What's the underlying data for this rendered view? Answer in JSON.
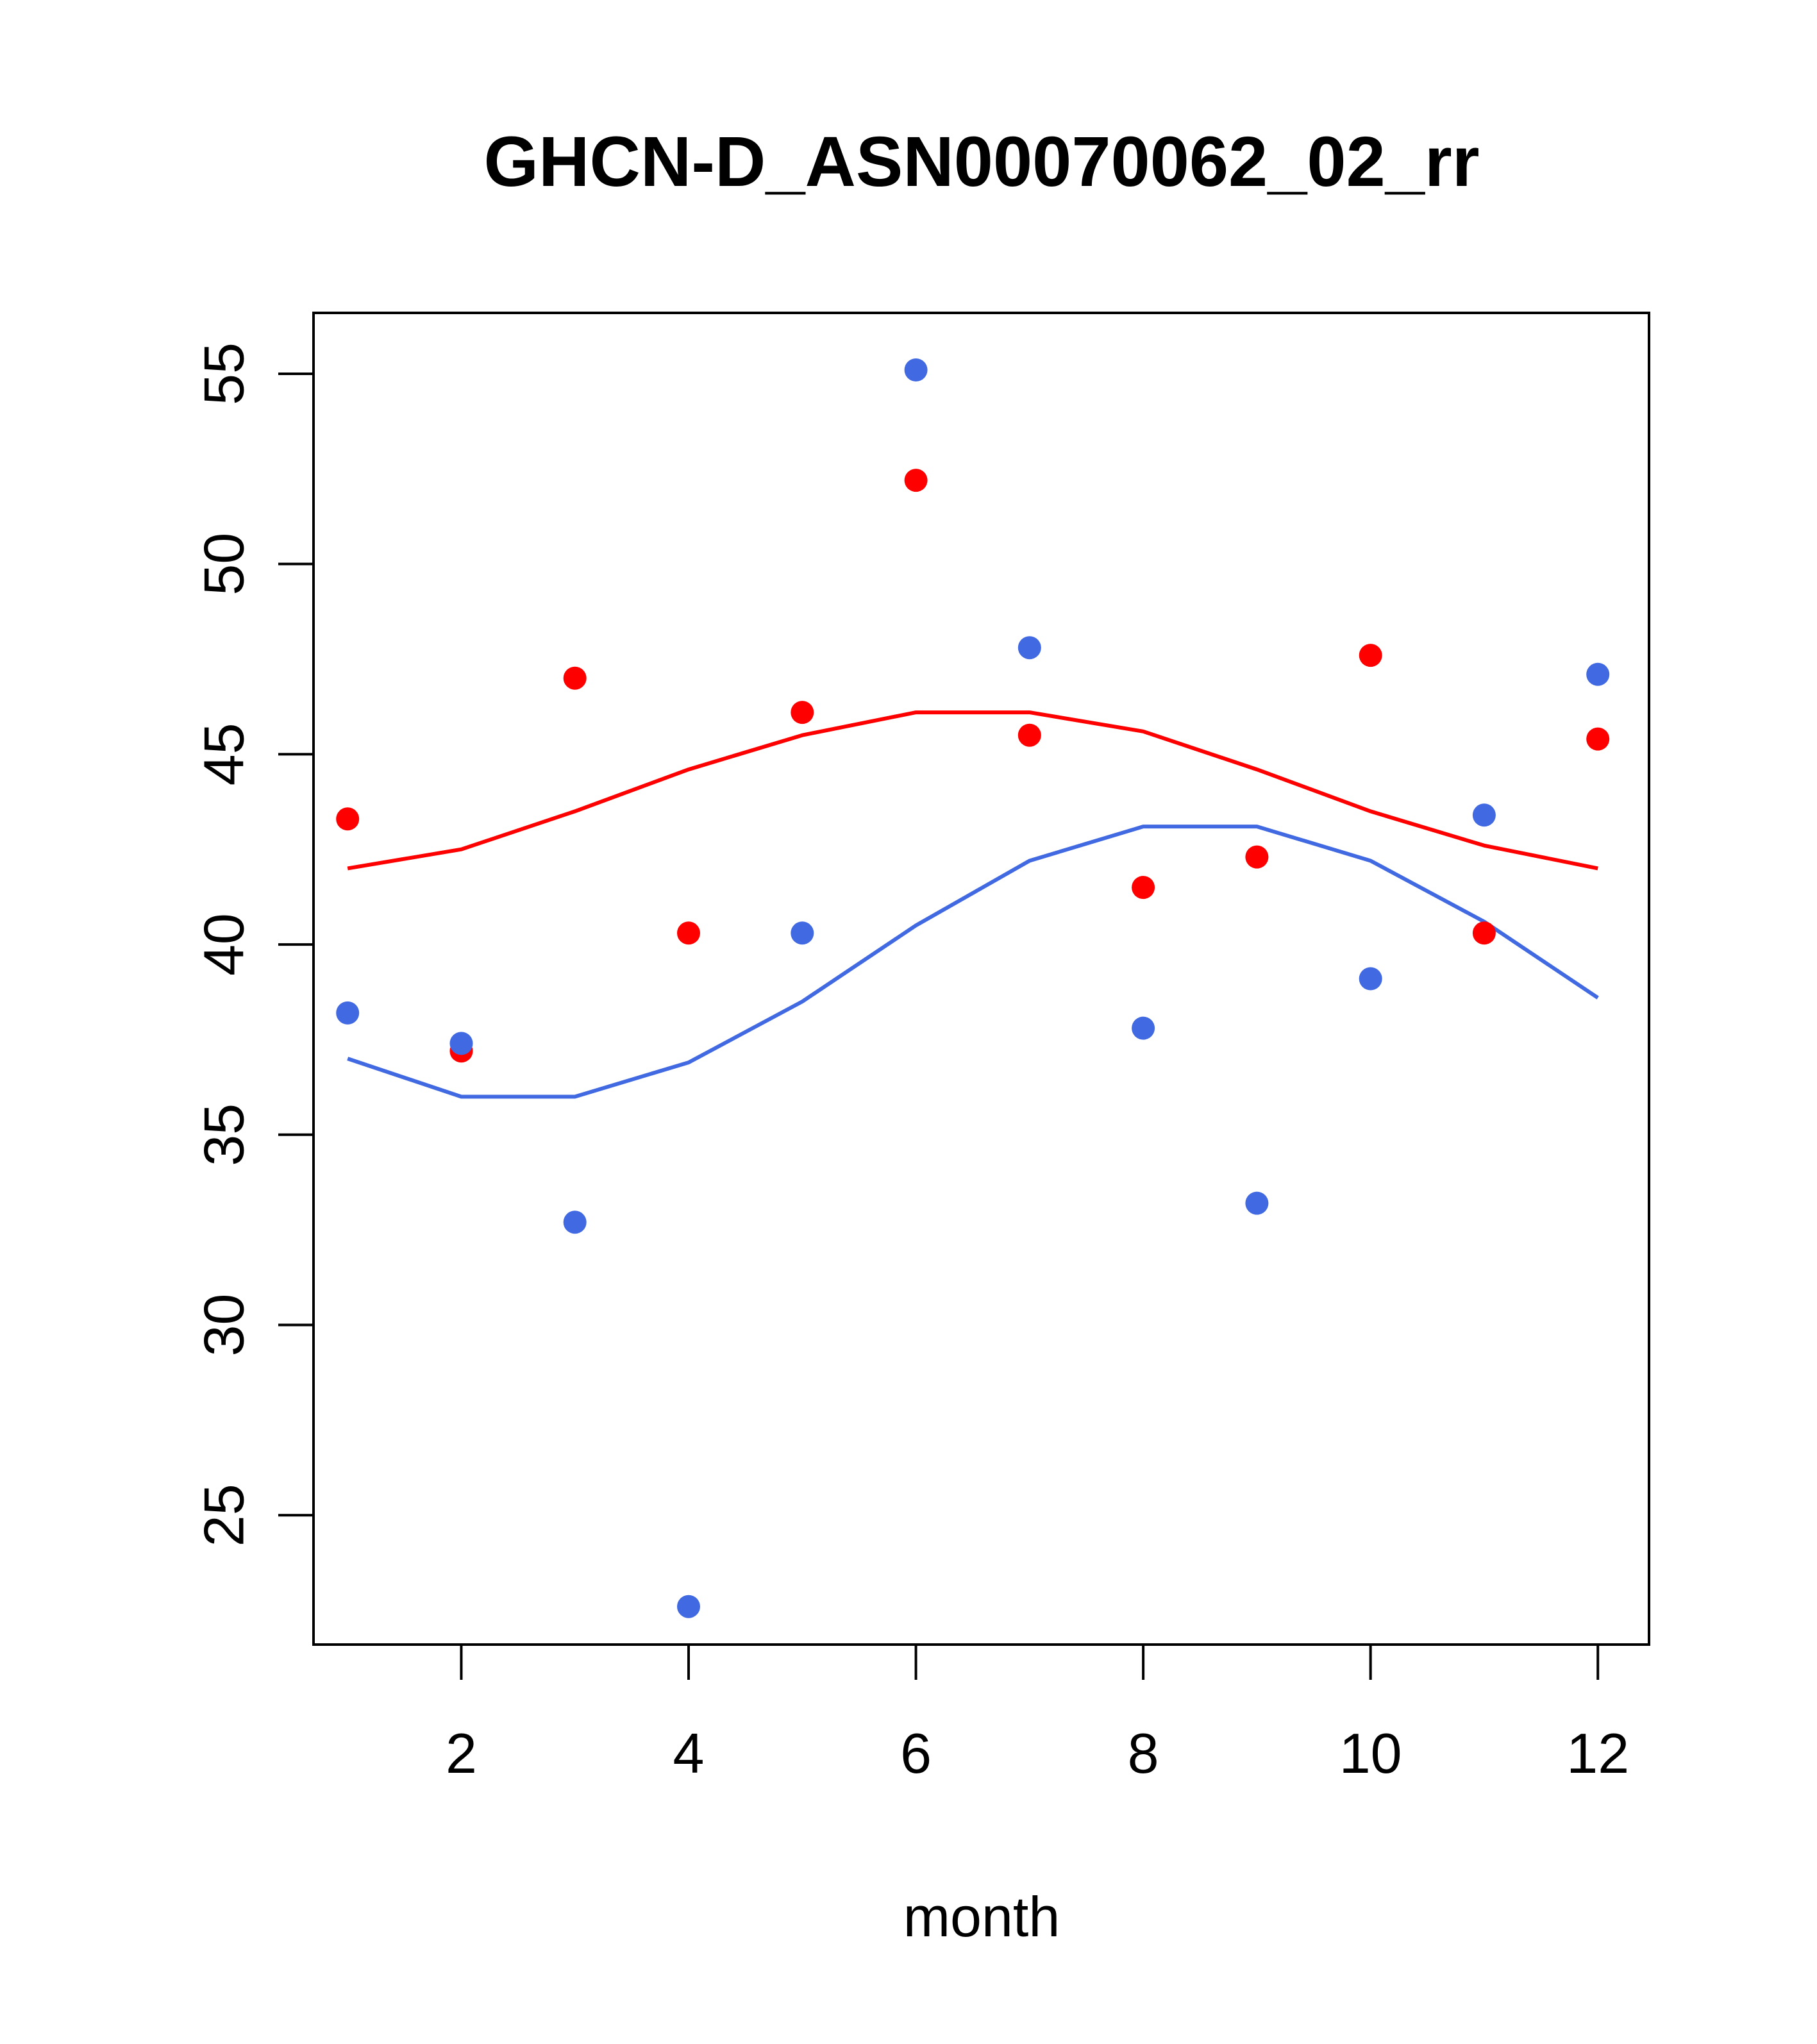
{
  "chart_data": {
    "type": "scatter",
    "title": "GHCN-D_ASN00070062_02_rr",
    "xlabel": "month",
    "ylabel": "",
    "xlim": [
      0.7,
      12.45
    ],
    "ylim": [
      21.6,
      56.6
    ],
    "xticks": [
      2,
      4,
      6,
      8,
      10,
      12
    ],
    "yticks": [
      25,
      30,
      35,
      40,
      45,
      50,
      55
    ],
    "grid": false,
    "legend": "none",
    "colors": {
      "red": "#ff0000",
      "blue": "#4169e1",
      "axis": "#000000"
    },
    "series": [
      {
        "color": "#ff0000",
        "x": [
          1,
          2,
          3,
          4,
          5,
          6,
          7,
          8,
          9,
          10,
          11,
          12
        ],
        "points": [
          43.3,
          37.2,
          47.0,
          40.3,
          46.1,
          52.2,
          45.5,
          41.5,
          42.3,
          47.6,
          40.3,
          45.4
        ],
        "curve": [
          42.0,
          42.5,
          43.5,
          44.6,
          45.5,
          46.1,
          46.1,
          45.6,
          44.6,
          43.5,
          42.6,
          42.0
        ]
      },
      {
        "color": "#4169e1",
        "x": [
          1,
          2,
          3,
          4,
          5,
          6,
          7,
          8,
          9,
          10,
          11,
          12
        ],
        "points": [
          38.2,
          37.4,
          32.7,
          22.6,
          40.3,
          55.1,
          47.8,
          37.8,
          33.2,
          39.1,
          43.4,
          47.1
        ],
        "curve": [
          37.0,
          36.0,
          36.0,
          36.9,
          38.5,
          40.5,
          42.2,
          43.1,
          43.1,
          42.2,
          40.6,
          38.6
        ]
      }
    ]
  }
}
